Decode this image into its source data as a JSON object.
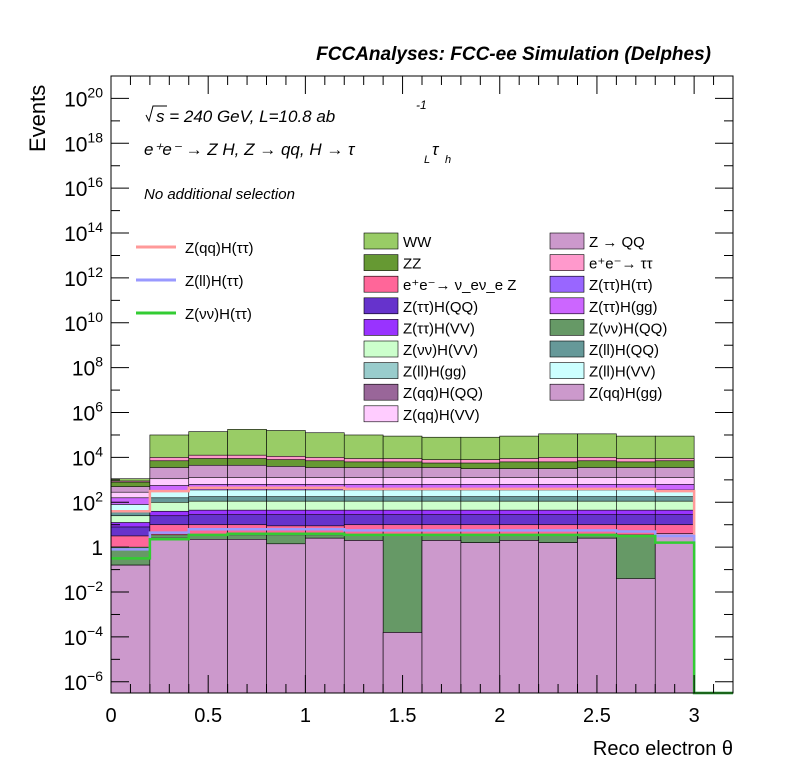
{
  "chart_data": {
    "type": "histogram",
    "title": "FCCAnalyses: FCC-ee Simulation (Delphes)",
    "xlabel": "Reco electron θ",
    "ylabel": "Events",
    "xlim": [
      0,
      3.2
    ],
    "ylog": true,
    "ylim_exponent": [
      -6.5,
      21
    ],
    "bin_edges": [
      0,
      0.2,
      0.4,
      0.6,
      0.8,
      1.0,
      1.2,
      1.4,
      1.6,
      1.8,
      2.0,
      2.2,
      2.4,
      2.6,
      2.8,
      3.0
    ],
    "x_ticks": [
      {
        "v": 0,
        "label": "0"
      },
      {
        "v": 0.5,
        "label": "0.5"
      },
      {
        "v": 1,
        "label": "1"
      },
      {
        "v": 1.5,
        "label": "1.5"
      },
      {
        "v": 2,
        "label": "2"
      },
      {
        "v": 2.5,
        "label": "2.5"
      },
      {
        "v": 3,
        "label": "3"
      }
    ],
    "y_ticks": [
      {
        "e": -6,
        "mant": "10",
        "exp": "−6"
      },
      {
        "e": -4,
        "mant": "10",
        "exp": "−4"
      },
      {
        "e": -2,
        "mant": "10",
        "exp": "−2"
      },
      {
        "e": 0,
        "mant": "1",
        "exp": ""
      },
      {
        "e": 2,
        "mant": "10",
        "exp": "2"
      },
      {
        "e": 4,
        "mant": "10",
        "exp": "4"
      },
      {
        "e": 6,
        "mant": "10",
        "exp": "6"
      },
      {
        "e": 8,
        "mant": "10",
        "exp": "8"
      },
      {
        "e": 10,
        "mant": "10",
        "exp": "10"
      },
      {
        "e": 12,
        "mant": "10",
        "exp": "12"
      },
      {
        "e": 14,
        "mant": "10",
        "exp": "14"
      },
      {
        "e": 16,
        "mant": "10",
        "exp": "16"
      },
      {
        "e": 18,
        "mant": "10",
        "exp": "18"
      },
      {
        "e": 20,
        "mant": "10",
        "exp": "20"
      }
    ],
    "annotations": {
      "line1": "s = 240 GeV, L=10.8 ab",
      "line1_exp": "-1",
      "line2": "e⁺e⁻ → Z H, Z → qq, H → τ",
      "line2_sub1": "L",
      "line2_tau": "τ",
      "line2_sub2": "h",
      "line3": "No additional selection"
    },
    "stack_top_log10": [
      [
        3.05,
        5.0,
        5.15,
        5.25,
        5.2,
        5.1,
        5.0,
        4.95,
        4.9,
        4.9,
        4.95,
        5.05,
        5.05,
        4.95,
        4.95
      ]
    ],
    "stacked_series": [
      {
        "name": "Z(qq)H(gg)",
        "color": "#cc99cc",
        "log10": [
          -0.8,
          0.4,
          0.35,
          0.35,
          0.15,
          0.4,
          0.3,
          -3.8,
          0.3,
          0.2,
          0.3,
          0.2,
          0.4,
          -1.4,
          0.6
        ]
      },
      {
        "name": "Z(qq)H(QQ)",
        "color": "#996699",
        "log10": [
          -0.8,
          0.4,
          0.35,
          0.35,
          0.15,
          0.4,
          0.3,
          -3.8,
          0.3,
          0.2,
          0.3,
          0.2,
          0.4,
          -6.5,
          0.55
        ]
      },
      {
        "name": "Z(νν)H(QQ)",
        "color": "#669966",
        "log10": [
          0.0,
          0.55,
          0.55,
          0.55,
          0.55,
          0.55,
          0.55,
          0.55,
          0.55,
          0.55,
          0.55,
          0.55,
          0.55,
          0.55,
          0.55
        ]
      },
      {
        "name": "e⁺e⁻→ ν_eν_e Z",
        "color": "#ff6699",
        "log10": [
          0.5,
          1.0,
          1.0,
          1.0,
          0.95,
          0.95,
          1.0,
          1.0,
          1.0,
          1.0,
          1.0,
          1.0,
          1.0,
          1.0,
          1.0
        ]
      },
      {
        "name": "Z(ττ)H(QQ)",
        "color": "#6633cc",
        "log10": [
          0.9,
          1.4,
          1.45,
          1.45,
          1.45,
          1.45,
          1.45,
          1.45,
          1.45,
          1.45,
          1.45,
          1.45,
          1.45,
          1.45,
          1.45
        ]
      },
      {
        "name": "Z(ττ)H(VV)",
        "color": "#9933ff",
        "log10": [
          1.1,
          1.6,
          1.65,
          1.65,
          1.65,
          1.65,
          1.65,
          1.65,
          1.65,
          1.65,
          1.65,
          1.65,
          1.65,
          1.65,
          1.65
        ]
      },
      {
        "name": "Z(νν)H(VV)",
        "color": "#ccffcc",
        "log10": [
          1.4,
          2.0,
          2.05,
          2.05,
          2.05,
          2.05,
          2.05,
          2.05,
          2.05,
          2.05,
          2.05,
          2.05,
          2.05,
          2.05,
          2.05
        ]
      },
      {
        "name": "Z(ll)H(QQ)",
        "color": "#669999",
        "log10": [
          1.6,
          2.2,
          2.25,
          2.25,
          2.25,
          2.25,
          2.25,
          2.25,
          2.25,
          2.25,
          2.25,
          2.25,
          2.25,
          2.25,
          2.25
        ]
      },
      {
        "name": "Z(ll)H(VV)",
        "color": "#ccffff",
        "log10": [
          1.9,
          2.5,
          2.55,
          2.55,
          2.55,
          2.55,
          2.55,
          2.55,
          2.55,
          2.55,
          2.55,
          2.55,
          2.55,
          2.55,
          2.55
        ]
      },
      {
        "name": "Z(ττ)H(gg)",
        "color": "#cc66ff",
        "log10": [
          2.2,
          2.75,
          2.8,
          2.8,
          2.8,
          2.8,
          2.8,
          2.8,
          2.8,
          2.8,
          2.8,
          2.8,
          2.8,
          2.8,
          2.8
        ]
      },
      {
        "name": "Z(qq)H(VV)",
        "color": "#ffccff",
        "log10": [
          2.45,
          3.05,
          3.1,
          3.1,
          3.1,
          3.1,
          3.1,
          3.1,
          3.1,
          3.1,
          3.1,
          3.1,
          3.1,
          3.1,
          3.1
        ]
      },
      {
        "name": "Z → QQ",
        "color": "#cc99cc",
        "log10": [
          2.7,
          3.55,
          3.65,
          3.65,
          3.6,
          3.55,
          3.55,
          3.55,
          3.55,
          3.5,
          3.5,
          3.5,
          3.55,
          3.55,
          3.55
        ]
      },
      {
        "name": "ZZ",
        "color": "#669933",
        "log10": [
          2.9,
          3.85,
          3.95,
          3.95,
          3.9,
          3.85,
          3.8,
          3.8,
          3.75,
          3.75,
          3.8,
          3.8,
          3.85,
          3.8,
          3.85
        ]
      },
      {
        "name": "e⁺e⁻→ ττ",
        "color": "#ff99cc",
        "log10": [
          2.95,
          4.0,
          4.1,
          4.1,
          4.05,
          4.0,
          3.95,
          3.95,
          3.9,
          3.9,
          3.95,
          4.0,
          4.0,
          3.95,
          3.95
        ]
      },
      {
        "name": "WW",
        "color": "#99cc66",
        "log10": [
          3.05,
          5.0,
          5.15,
          5.25,
          5.2,
          5.1,
          5.0,
          4.95,
          4.9,
          4.9,
          4.95,
          5.05,
          5.05,
          4.95,
          4.95
        ]
      }
    ],
    "signal_series": [
      {
        "name": "Z(qq)H(ττ)",
        "color": "#ff9999",
        "log10": [
          1.6,
          2.5,
          2.65,
          2.65,
          2.65,
          2.65,
          2.6,
          2.6,
          2.6,
          2.6,
          2.6,
          2.6,
          2.6,
          2.6,
          2.5
        ]
      },
      {
        "name": "Z(ll)H(ττ)",
        "color": "#9999ff",
        "log10": [
          -0.1,
          0.65,
          0.8,
          0.8,
          0.8,
          0.8,
          0.75,
          0.75,
          0.75,
          0.75,
          0.75,
          0.75,
          0.75,
          0.7,
          0.5
        ]
      },
      {
        "name": "Z(νν)H(ττ)",
        "color": "#33cc33",
        "log10": [
          -0.5,
          0.35,
          0.55,
          0.6,
          0.6,
          0.6,
          0.55,
          0.55,
          0.55,
          0.55,
          0.55,
          0.55,
          0.55,
          0.5,
          0.2
        ]
      }
    ],
    "legend_left": [
      {
        "name": "Z(qq)H(ττ)",
        "color": "#ff9999"
      },
      {
        "name": "Z(ll)H(ττ)",
        "color": "#9999ff"
      },
      {
        "name": "Z(νν)H(ττ)",
        "color": "#33cc33"
      }
    ],
    "legend_mid": [
      {
        "name": "WW",
        "color": "#99cc66"
      },
      {
        "name": "ZZ",
        "color": "#669933"
      },
      {
        "name": "e⁺e⁻→ ν_eν_e Z",
        "color": "#ff6699"
      },
      {
        "name": "Z(ττ)H(QQ)",
        "color": "#6633cc"
      },
      {
        "name": "Z(ττ)H(VV)",
        "color": "#9933ff"
      },
      {
        "name": "Z(νν)H(VV)",
        "color": "#ccffcc"
      },
      {
        "name": "Z(ll)H(gg)",
        "color": "#99cccc"
      },
      {
        "name": "Z(qq)H(QQ)",
        "color": "#996699"
      },
      {
        "name": "Z(qq)H(VV)",
        "color": "#ffccff"
      }
    ],
    "legend_right": [
      {
        "name": "Z → QQ",
        "color": "#cc99cc"
      },
      {
        "name": "e⁺e⁻→ ττ",
        "color": "#ff99cc"
      },
      {
        "name": "Z(ττ)H(ττ)",
        "color": "#9966ff"
      },
      {
        "name": "Z(ττ)H(gg)",
        "color": "#cc66ff"
      },
      {
        "name": "Z(νν)H(QQ)",
        "color": "#669966"
      },
      {
        "name": "Z(ll)H(QQ)",
        "color": "#669999"
      },
      {
        "name": "Z(ll)H(VV)",
        "color": "#ccffff"
      },
      {
        "name": "Z(qq)H(gg)",
        "color": "#cc99cc"
      }
    ]
  }
}
